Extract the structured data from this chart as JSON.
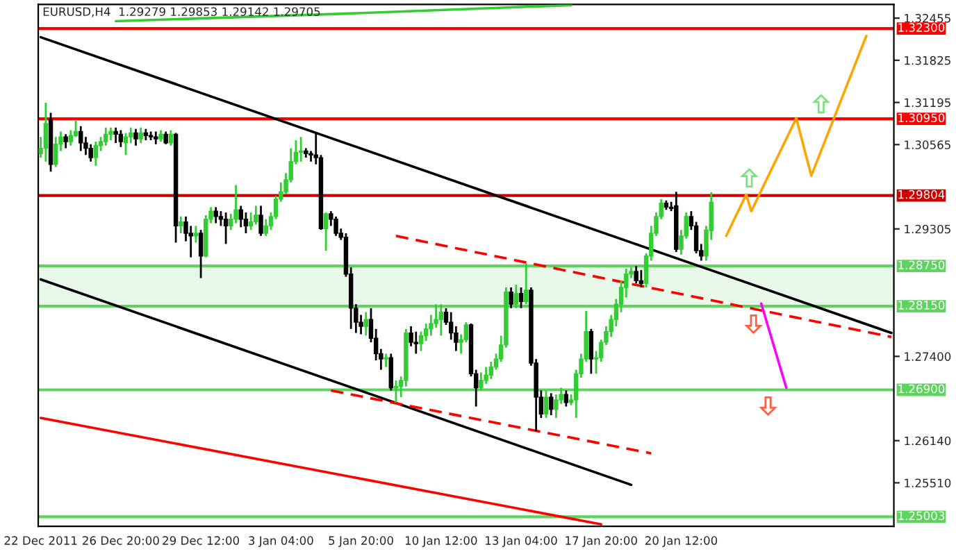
{
  "chart_data": {
    "type": "candlestick",
    "title": "EURUSD,H4  1.29279 1.29853 1.29142 1.29705",
    "categories": [
      "22 Dec 2011",
      null,
      null,
      null,
      null,
      null,
      null,
      null,
      null,
      null,
      null,
      null,
      null,
      null,
      null,
      null,
      "26 Dec 20:00",
      null,
      null,
      null,
      null,
      null,
      null,
      null,
      null,
      null,
      null,
      null,
      null,
      null,
      null,
      null,
      "29 Dec 12:00",
      null,
      null,
      null,
      null,
      null,
      null,
      null,
      null,
      null,
      null,
      null,
      null,
      null,
      null,
      null,
      "3 Jan 04:00",
      null,
      null,
      null,
      null,
      null,
      null,
      null,
      null,
      null,
      null,
      null,
      null,
      null,
      null,
      null,
      "5 Jan 20:00",
      null,
      null,
      null,
      null,
      null,
      null,
      null,
      null,
      null,
      null,
      null,
      null,
      null,
      null,
      null,
      "10 Jan 12:00",
      null,
      null,
      null,
      null,
      null,
      null,
      null,
      null,
      null,
      null,
      null,
      null,
      null,
      null,
      null,
      "13 Jan 04:00",
      null,
      null,
      null,
      null,
      null,
      null,
      null,
      null,
      null,
      null,
      null,
      null,
      null,
      null,
      null,
      "17 Jan 20:00",
      null,
      null,
      null,
      null,
      null,
      null,
      null,
      null,
      null,
      null,
      null,
      null,
      null,
      null,
      null,
      "20 Jan 12:00",
      null,
      null,
      null,
      null,
      null,
      null,
      null,
      null,
      null,
      null,
      null,
      null,
      null,
      null,
      null,
      null,
      null,
      null,
      null,
      null,
      null,
      null,
      null,
      null,
      null,
      null,
      null,
      null,
      null,
      null,
      null,
      null,
      null,
      null,
      null,
      null,
      null,
      null,
      null,
      null,
      null,
      null
    ],
    "ohlc": [
      [
        1.3043,
        1.3068,
        1.3037,
        1.3051
      ],
      [
        1.3051,
        1.3119,
        1.3031,
        1.3088
      ],
      [
        1.3094,
        1.3104,
        1.3016,
        1.3027
      ],
      [
        1.3027,
        1.3068,
        1.3023,
        1.3057
      ],
      [
        1.3057,
        1.3076,
        1.3047,
        1.3068
      ],
      [
        1.3068,
        1.3072,
        1.3051,
        1.3061
      ],
      [
        1.3061,
        1.3078,
        1.3055,
        1.307
      ],
      [
        1.307,
        1.3092,
        1.3068,
        1.3076
      ],
      [
        1.3076,
        1.3084,
        1.3047,
        1.3059
      ],
      [
        1.3059,
        1.3068,
        1.3041,
        1.3051
      ],
      [
        1.3051,
        1.3057,
        1.3031,
        1.3037
      ],
      [
        1.3037,
        1.3061,
        1.3025,
        1.3055
      ],
      [
        1.3055,
        1.3068,
        1.3047,
        1.3061
      ],
      [
        1.3061,
        1.3082,
        1.3055,
        1.3072
      ],
      [
        1.3072,
        1.3082,
        1.3063,
        1.3076
      ],
      [
        1.3076,
        1.3082,
        1.3059,
        1.3072
      ],
      [
        1.3072,
        1.3078,
        1.3053,
        1.3061
      ],
      [
        1.3059,
        1.3074,
        1.3041,
        1.3068
      ],
      [
        1.3068,
        1.3082,
        1.3059,
        1.3074
      ],
      [
        1.3074,
        1.308,
        1.3055,
        1.3065
      ],
      [
        1.3065,
        1.3082,
        1.3059,
        1.3074
      ],
      [
        1.3074,
        1.308,
        1.3063,
        1.307
      ],
      [
        1.307,
        1.3076,
        1.3063,
        1.3068
      ],
      [
        1.3068,
        1.3076,
        1.3057,
        1.3065
      ],
      [
        1.3065,
        1.3078,
        1.3061,
        1.3072
      ],
      [
        1.3072,
        1.3076,
        1.3057,
        1.3059
      ],
      [
        1.3059,
        1.3078,
        1.3055,
        1.3072
      ],
      [
        1.3072,
        1.3074,
        1.291,
        1.2935
      ],
      [
        1.2935,
        1.2949,
        1.2924,
        1.2941
      ],
      [
        1.2941,
        1.2949,
        1.2912,
        1.2924
      ],
      [
        1.2924,
        1.2935,
        1.2888,
        1.292
      ],
      [
        1.292,
        1.2935,
        1.291,
        1.2924
      ],
      [
        1.2924,
        1.2929,
        1.2857,
        1.289
      ],
      [
        1.289,
        1.2951,
        1.2888,
        1.2945
      ],
      [
        1.2945,
        1.2963,
        1.2939,
        1.2957
      ],
      [
        1.2957,
        1.2963,
        1.2939,
        1.2949
      ],
      [
        1.2949,
        1.2957,
        1.2935,
        1.2945
      ],
      [
        1.2945,
        1.2955,
        1.2908,
        1.2935
      ],
      [
        1.2935,
        1.2953,
        1.2929,
        1.2945
      ],
      [
        1.2945,
        1.2996,
        1.2939,
        1.2959
      ],
      [
        1.2959,
        1.2965,
        1.2933,
        1.2945
      ],
      [
        1.2945,
        1.2955,
        1.2924,
        1.2935
      ],
      [
        1.2935,
        1.2955,
        1.2929,
        1.2941
      ],
      [
        1.2941,
        1.2965,
        1.2937,
        1.2951
      ],
      [
        1.2951,
        1.2965,
        1.292,
        1.2924
      ],
      [
        1.2924,
        1.2945,
        1.292,
        1.2935
      ],
      [
        1.2935,
        1.2955,
        1.2929,
        1.2949
      ],
      [
        1.2949,
        1.298,
        1.2945,
        1.2975
      ],
      [
        1.2975,
        1.3,
        1.2971,
        1.2986
      ],
      [
        1.2986,
        1.3014,
        1.2982,
        1.3004
      ],
      [
        1.3004,
        1.3051,
        1.3,
        1.3031
      ],
      [
        1.3031,
        1.3063,
        1.3027,
        1.3045
      ],
      [
        1.3045,
        1.3068,
        1.3031,
        1.3047
      ],
      [
        1.3047,
        1.3051,
        1.3037,
        1.3043
      ],
      [
        1.3043,
        1.3047,
        1.3031,
        1.3041
      ],
      [
        1.3041,
        1.3074,
        1.3027,
        1.3037
      ],
      [
        1.3037,
        1.3041,
        1.2929,
        1.2931
      ],
      [
        1.2931,
        1.2955,
        1.2898,
        1.2953
      ],
      [
        1.2953,
        1.2957,
        1.2935,
        1.2945
      ],
      [
        1.2945,
        1.2949,
        1.292,
        1.2924
      ],
      [
        1.2924,
        1.2931,
        1.2914,
        1.2918
      ],
      [
        1.2918,
        1.2924,
        1.2859,
        1.2863
      ],
      [
        1.2863,
        1.2873,
        1.2781,
        1.2812
      ],
      [
        1.2812,
        1.2818,
        1.2775,
        1.2791
      ],
      [
        1.2791,
        1.2802,
        1.2773,
        1.2785
      ],
      [
        1.2785,
        1.2806,
        1.2771,
        1.2795
      ],
      [
        1.2795,
        1.2812,
        1.2761,
        1.2767
      ],
      [
        1.2767,
        1.2781,
        1.2734,
        1.2744
      ],
      [
        1.2744,
        1.2751,
        1.272,
        1.2736
      ],
      [
        1.2736,
        1.2744,
        1.2724,
        1.2738
      ],
      [
        1.2738,
        1.2744,
        1.2689,
        1.2693
      ],
      [
        1.2693,
        1.2704,
        1.2671,
        1.2695
      ],
      [
        1.2695,
        1.271,
        1.2679,
        1.2704
      ],
      [
        1.2704,
        1.2781,
        1.2695,
        1.2775
      ],
      [
        1.2775,
        1.2785,
        1.2755,
        1.2761
      ],
      [
        1.2761,
        1.2777,
        1.2744,
        1.2759
      ],
      [
        1.2759,
        1.2777,
        1.2748,
        1.2771
      ],
      [
        1.2771,
        1.2789,
        1.2763,
        1.2781
      ],
      [
        1.2781,
        1.2802,
        1.2771,
        1.2789
      ],
      [
        1.2789,
        1.2818,
        1.2783,
        1.2795
      ],
      [
        1.2795,
        1.2818,
        1.2771,
        1.2806
      ],
      [
        1.2806,
        1.2812,
        1.2787,
        1.2791
      ],
      [
        1.2791,
        1.2806,
        1.2765,
        1.2775
      ],
      [
        1.2775,
        1.2785,
        1.2748,
        1.2761
      ],
      [
        1.2761,
        1.2773,
        1.2744,
        1.2765
      ],
      [
        1.2765,
        1.2791,
        1.2761,
        1.2787
      ],
      [
        1.2787,
        1.2789,
        1.271,
        1.2714
      ],
      [
        1.2714,
        1.272,
        1.2665,
        1.2693
      ],
      [
        1.2693,
        1.2716,
        1.2689,
        1.2704
      ],
      [
        1.2704,
        1.2724,
        1.2699,
        1.2712
      ],
      [
        1.2712,
        1.2732,
        1.2706,
        1.2724
      ],
      [
        1.2724,
        1.2744,
        1.272,
        1.2736
      ],
      [
        1.2736,
        1.2771,
        1.2732,
        1.2757
      ],
      [
        1.2757,
        1.2843,
        1.2753,
        1.2836
      ],
      [
        1.2836,
        1.2843,
        1.2812,
        1.2818
      ],
      [
        1.2818,
        1.2847,
        1.2812,
        1.2834
      ],
      [
        1.2834,
        1.2843,
        1.2812,
        1.2822
      ],
      [
        1.2822,
        1.2879,
        1.2818,
        1.2839
      ],
      [
        1.2839,
        1.2843,
        1.2726,
        1.273
      ],
      [
        1.273,
        1.2736,
        1.2628,
        1.2679
      ],
      [
        1.2679,
        1.2689,
        1.2648,
        1.2654
      ],
      [
        1.2654,
        1.2689,
        1.2648,
        1.2679
      ],
      [
        1.2679,
        1.2685,
        1.2652,
        1.2661
      ],
      [
        1.2661,
        1.2683,
        1.2648,
        1.2675
      ],
      [
        1.2675,
        1.2693,
        1.2669,
        1.2683
      ],
      [
        1.2683,
        1.2689,
        1.2665,
        1.2671
      ],
      [
        1.2671,
        1.2683,
        1.2667,
        1.2675
      ],
      [
        1.2675,
        1.272,
        1.2648,
        1.2714
      ],
      [
        1.2714,
        1.2744,
        1.2708,
        1.2736
      ],
      [
        1.2736,
        1.2808,
        1.2732,
        1.2777
      ],
      [
        1.2777,
        1.2781,
        1.2714,
        1.2736
      ],
      [
        1.2736,
        1.2748,
        1.2714,
        1.2738
      ],
      [
        1.2738,
        1.2765,
        1.2732,
        1.2761
      ],
      [
        1.2761,
        1.2785,
        1.2757,
        1.2777
      ],
      [
        1.2777,
        1.2802,
        1.2769,
        1.2795
      ],
      [
        1.2795,
        1.2826,
        1.2785,
        1.2818
      ],
      [
        1.2818,
        1.2853,
        1.2806,
        1.2843
      ],
      [
        1.2843,
        1.2871,
        1.2828,
        1.2863
      ],
      [
        1.2863,
        1.2873,
        1.2857,
        1.2867
      ],
      [
        1.2867,
        1.2875,
        1.2849,
        1.2853
      ],
      [
        1.2853,
        1.2869,
        1.2843,
        1.2849
      ],
      [
        1.2849,
        1.2894,
        1.2843,
        1.289
      ],
      [
        1.289,
        1.2935,
        1.2883,
        1.2924
      ],
      [
        1.2924,
        1.2955,
        1.292,
        1.2949
      ],
      [
        1.2949,
        1.2975,
        1.2945,
        1.2969
      ],
      [
        1.2969,
        1.2973,
        1.2959,
        1.2963
      ],
      [
        1.2963,
        1.2971,
        1.2957,
        1.2961
      ],
      [
        1.2965,
        1.2986,
        1.2896,
        1.29
      ],
      [
        1.29,
        1.2929,
        1.2892,
        1.292
      ],
      [
        1.292,
        1.2955,
        1.2916,
        1.2949
      ],
      [
        1.2949,
        1.2957,
        1.2929,
        1.2935
      ],
      [
        1.2935,
        1.2941,
        1.2894,
        1.2898
      ],
      [
        1.2898,
        1.2908,
        1.2883,
        1.289
      ],
      [
        1.289,
        1.2935,
        1.2883,
        1.2929
      ],
      [
        1.29279,
        1.29853,
        1.29142,
        1.29705
      ],
      null,
      null,
      null,
      null,
      null,
      null,
      null,
      null,
      null,
      null,
      null,
      null,
      null,
      null,
      null,
      null,
      null,
      null,
      null,
      null,
      null,
      null,
      null,
      null,
      null,
      null,
      null,
      null,
      null,
      null,
      null,
      null,
      null,
      null,
      null,
      null
    ],
    "series": [
      {
        "type": "line",
        "color": "#000000",
        "values": [
          1.3217,
          null,
          null,
          null,
          null,
          null,
          null,
          null,
          null,
          null,
          null,
          null,
          null,
          null,
          null,
          null,
          null,
          null,
          null,
          null,
          null,
          null,
          null,
          null,
          null,
          null,
          null,
          null,
          null,
          null,
          null,
          null,
          null,
          null,
          null,
          null,
          null,
          null,
          null,
          null,
          null,
          null,
          null,
          null,
          null,
          null,
          null,
          null,
          null,
          null,
          null,
          null,
          null,
          null,
          null,
          null,
          null,
          null,
          null,
          null,
          null,
          null,
          null,
          null,
          null,
          null,
          null,
          null,
          null,
          null,
          null,
          null,
          null,
          null,
          null,
          null,
          null,
          null,
          null,
          null,
          null,
          null,
          null,
          null,
          null,
          null,
          null,
          null,
          null,
          null,
          null,
          null,
          null,
          null,
          null,
          null,
          null,
          null,
          null,
          null,
          null,
          null,
          null,
          null,
          null,
          null,
          null,
          null,
          null,
          null,
          null,
          null,
          null,
          null,
          null,
          null,
          null,
          null,
          null,
          null,
          null,
          null,
          null,
          null,
          null,
          null,
          null,
          null,
          null,
          null,
          null,
          null,
          null,
          null,
          null,
          null,
          null,
          null,
          null,
          null,
          null,
          null,
          null,
          null,
          null,
          null,
          null,
          null,
          null,
          null,
          null,
          null,
          null,
          null,
          null,
          null,
          null,
          null,
          null,
          null,
          null,
          null,
          null,
          null,
          null,
          null,
          null,
          null,
          null,
          null,
          1.2775
        ]
      },
      {
        "type": "line",
        "color": "#000000",
        "values": [
          1.2855,
          null,
          null,
          null,
          null,
          null,
          null,
          null,
          null,
          null,
          null,
          null,
          null,
          null,
          null,
          null,
          null,
          null,
          null,
          null,
          null,
          null,
          null,
          null,
          null,
          null,
          null,
          null,
          null,
          null,
          null,
          null,
          null,
          null,
          null,
          null,
          null,
          null,
          null,
          null,
          null,
          null,
          null,
          null,
          null,
          null,
          null,
          null,
          null,
          null,
          null,
          null,
          null,
          null,
          null,
          null,
          null,
          null,
          null,
          null,
          null,
          null,
          null,
          null,
          null,
          null,
          null,
          null,
          null,
          null,
          null,
          null,
          null,
          null,
          null,
          null,
          null,
          null,
          null,
          null,
          null,
          null,
          null,
          null,
          null,
          null,
          null,
          null,
          null,
          null,
          null,
          null,
          null,
          null,
          null,
          null,
          null,
          null,
          null,
          null,
          null,
          null,
          null,
          null,
          null,
          null,
          null,
          null,
          null,
          null,
          null,
          null,
          null,
          null,
          null,
          null,
          null,
          null,
          1.2548,
          null,
          null,
          null,
          null,
          null,
          null,
          null,
          null,
          null,
          null,
          null,
          null,
          null,
          null,
          null,
          null,
          null,
          null,
          null,
          null,
          null,
          null,
          null,
          null,
          null,
          null,
          null,
          null,
          null,
          null,
          null,
          null,
          null,
          null,
          null,
          null,
          null,
          null,
          null,
          null,
          null,
          null,
          null,
          null,
          null,
          null,
          null,
          null,
          null,
          null,
          null,
          null
        ]
      },
      {
        "type": "line",
        "color": "#ff0000",
        "values": [
          1.2648,
          null,
          null,
          null,
          null,
          null,
          null,
          null,
          null,
          null,
          null,
          null,
          null,
          null,
          null,
          null,
          null,
          null,
          null,
          null,
          null,
          null,
          null,
          null,
          null,
          null,
          null,
          null,
          null,
          null,
          null,
          null,
          null,
          null,
          null,
          null,
          null,
          null,
          null,
          null,
          null,
          null,
          null,
          null,
          null,
          null,
          null,
          null,
          null,
          null,
          null,
          null,
          null,
          null,
          null,
          null,
          null,
          null,
          null,
          null,
          null,
          null,
          null,
          null,
          null,
          null,
          null,
          null,
          null,
          null,
          null,
          null,
          null,
          null,
          null,
          null,
          null,
          null,
          null,
          null,
          null,
          null,
          null,
          null,
          null,
          null,
          null,
          null,
          null,
          null,
          null,
          null,
          null,
          null,
          null,
          null,
          null,
          null,
          null,
          null,
          null,
          null,
          null,
          null,
          null,
          null,
          null,
          null,
          null,
          null,
          null,
          null,
          1.2489,
          null,
          null,
          null,
          null,
          null,
          null,
          null,
          null,
          null,
          null,
          null,
          null,
          null,
          null,
          null,
          null,
          null,
          null,
          null,
          null,
          null,
          null,
          null,
          null,
          null,
          null,
          null,
          null,
          null,
          null,
          null,
          null,
          null,
          null,
          null,
          null,
          null,
          null,
          null,
          null,
          null,
          null,
          null,
          null,
          null,
          null,
          null,
          null,
          null,
          null,
          null,
          null,
          null,
          null,
          null,
          null,
          null,
          null
        ]
      },
      {
        "type": "line",
        "color": "#32cd32",
        "values": [
          null,
          null,
          null,
          null,
          null,
          null,
          null,
          null,
          null,
          null,
          null,
          null,
          null,
          null,
          null,
          1.3241,
          null,
          null,
          null,
          null,
          null,
          null,
          null,
          null,
          null,
          null,
          null,
          null,
          null,
          null,
          null,
          null,
          null,
          null,
          null,
          null,
          null,
          null,
          null,
          null,
          null,
          null,
          null,
          null,
          null,
          null,
          null,
          null,
          null,
          null,
          null,
          null,
          null,
          null,
          null,
          null,
          null,
          null,
          null,
          null,
          1.3252,
          null,
          null,
          null,
          null,
          null,
          null,
          null,
          null,
          null,
          null,
          null,
          null,
          null,
          null,
          null,
          null,
          null,
          null,
          null,
          null,
          null,
          null,
          null,
          null,
          null,
          null,
          null,
          null,
          null,
          null,
          null,
          null,
          null,
          null,
          null,
          null,
          null,
          null,
          null,
          null,
          null,
          null,
          null,
          null,
          null,
          1.3265,
          null,
          null,
          null,
          null,
          null,
          null,
          null,
          null,
          null,
          null,
          null,
          null,
          null,
          null,
          null,
          null,
          null,
          null,
          null,
          null,
          null,
          null,
          null,
          null,
          null,
          null,
          null,
          null,
          null,
          null,
          null,
          null,
          null,
          null,
          null,
          null,
          null,
          null,
          null,
          null,
          null,
          null,
          null,
          null,
          null,
          null,
          null,
          null,
          null,
          null,
          null,
          null,
          null,
          null,
          null,
          null,
          null,
          null,
          null,
          null,
          null,
          null,
          null,
          null
        ]
      },
      {
        "type": "line",
        "color": "#ff0000",
        "line_style": "dashed",
        "values": [
          null,
          null,
          null,
          null,
          null,
          null,
          null,
          null,
          null,
          null,
          null,
          null,
          null,
          null,
          null,
          null,
          null,
          null,
          null,
          null,
          null,
          null,
          null,
          null,
          null,
          null,
          null,
          null,
          null,
          null,
          null,
          null,
          null,
          null,
          null,
          null,
          null,
          null,
          null,
          null,
          null,
          null,
          null,
          null,
          null,
          null,
          null,
          null,
          null,
          null,
          null,
          null,
          null,
          null,
          null,
          null,
          null,
          null,
          null,
          null,
          null,
          null,
          null,
          null,
          null,
          null,
          null,
          null,
          null,
          null,
          null,
          1.292,
          null,
          null,
          null,
          null,
          null,
          null,
          null,
          null,
          null,
          null,
          null,
          null,
          null,
          null,
          null,
          null,
          null,
          null,
          null,
          null,
          null,
          null,
          null,
          null,
          null,
          null,
          null,
          null,
          null,
          null,
          null,
          null,
          null,
          null,
          null,
          null,
          null,
          null,
          null,
          null,
          null,
          null,
          null,
          null,
          null,
          null,
          null,
          null,
          null,
          null,
          null,
          null,
          null,
          null,
          null,
          null,
          null,
          null,
          null,
          null,
          null,
          null,
          null,
          null,
          null,
          null,
          null,
          null,
          null,
          null,
          null,
          null,
          null,
          null,
          null,
          null,
          null,
          null,
          null,
          null,
          null,
          null,
          null,
          null,
          null,
          null,
          null,
          null,
          null,
          null,
          null,
          null,
          null,
          null,
          null,
          null,
          null,
          null,
          1.2769
        ]
      },
      {
        "type": "line",
        "color": "#ff0000",
        "line_style": "dashed",
        "values": [
          null,
          null,
          null,
          null,
          null,
          null,
          null,
          null,
          null,
          null,
          null,
          null,
          null,
          null,
          null,
          null,
          null,
          null,
          null,
          null,
          null,
          null,
          null,
          null,
          null,
          null,
          null,
          null,
          null,
          null,
          null,
          null,
          null,
          null,
          null,
          null,
          null,
          null,
          null,
          null,
          null,
          null,
          null,
          null,
          null,
          null,
          null,
          null,
          null,
          null,
          null,
          null,
          null,
          null,
          null,
          null,
          null,
          null,
          1.2689,
          null,
          null,
          null,
          null,
          null,
          null,
          null,
          null,
          null,
          null,
          null,
          null,
          null,
          null,
          null,
          null,
          null,
          null,
          null,
          null,
          null,
          null,
          null,
          null,
          null,
          null,
          null,
          null,
          null,
          null,
          null,
          null,
          null,
          null,
          null,
          null,
          null,
          null,
          null,
          null,
          null,
          null,
          null,
          null,
          null,
          null,
          null,
          null,
          null,
          null,
          null,
          null,
          null,
          null,
          null,
          null,
          null,
          null,
          null,
          null,
          null,
          null,
          null,
          1.2595,
          null,
          null,
          null,
          null,
          null,
          null,
          null,
          null,
          null,
          null,
          null,
          null,
          null,
          null,
          null,
          null,
          null,
          null,
          null,
          null,
          null,
          null,
          null,
          null,
          null,
          null,
          null,
          null,
          null,
          null,
          null,
          null,
          null,
          null,
          null,
          null,
          null,
          null,
          null,
          null,
          null,
          null,
          null,
          null,
          null,
          null,
          null,
          null
        ]
      },
      {
        "type": "line",
        "color": "#ffa500",
        "values": [
          null,
          null,
          null,
          null,
          null,
          null,
          null,
          null,
          null,
          null,
          null,
          null,
          null,
          null,
          null,
          null,
          null,
          null,
          null,
          null,
          null,
          null,
          null,
          null,
          null,
          null,
          null,
          null,
          null,
          null,
          null,
          null,
          null,
          null,
          null,
          null,
          null,
          null,
          null,
          null,
          null,
          null,
          null,
          null,
          null,
          null,
          null,
          null,
          null,
          null,
          null,
          null,
          null,
          null,
          null,
          null,
          null,
          null,
          null,
          null,
          null,
          null,
          null,
          null,
          null,
          null,
          null,
          null,
          null,
          null,
          null,
          null,
          null,
          null,
          null,
          null,
          null,
          null,
          null,
          null,
          null,
          null,
          null,
          null,
          null,
          null,
          null,
          null,
          null,
          null,
          null,
          null,
          null,
          null,
          null,
          null,
          null,
          null,
          null,
          null,
          null,
          null,
          null,
          null,
          null,
          null,
          null,
          null,
          null,
          null,
          null,
          null,
          null,
          null,
          null,
          null,
          null,
          null,
          null,
          null,
          null,
          null,
          null,
          null,
          null,
          null,
          null,
          null,
          null,
          null,
          null,
          null,
          null,
          null,
          null,
          null,
          null,
          1.292,
          null,
          null,
          null,
          1.2982,
          1.2957,
          null,
          null,
          null,
          null,
          null,
          null,
          null,
          null,
          1.3096,
          null,
          null,
          1.301,
          null,
          null,
          null,
          null,
          null,
          null,
          null,
          null,
          null,
          null,
          1.3219,
          null,
          null,
          null,
          null,
          null
        ]
      },
      {
        "type": "line",
        "color": "#ff00ff",
        "values": [
          null,
          null,
          null,
          null,
          null,
          null,
          null,
          null,
          null,
          null,
          null,
          null,
          null,
          null,
          null,
          null,
          null,
          null,
          null,
          null,
          null,
          null,
          null,
          null,
          null,
          null,
          null,
          null,
          null,
          null,
          null,
          null,
          null,
          null,
          null,
          null,
          null,
          null,
          null,
          null,
          null,
          null,
          null,
          null,
          null,
          null,
          null,
          null,
          null,
          null,
          null,
          null,
          null,
          null,
          null,
          null,
          null,
          null,
          null,
          null,
          null,
          null,
          null,
          null,
          null,
          null,
          null,
          null,
          null,
          null,
          null,
          null,
          null,
          null,
          null,
          null,
          null,
          null,
          null,
          null,
          null,
          null,
          null,
          null,
          null,
          null,
          null,
          null,
          null,
          null,
          null,
          null,
          null,
          null,
          null,
          null,
          null,
          null,
          null,
          null,
          null,
          null,
          null,
          null,
          null,
          null,
          null,
          null,
          null,
          null,
          null,
          null,
          null,
          null,
          null,
          null,
          null,
          null,
          null,
          null,
          null,
          null,
          null,
          null,
          null,
          null,
          null,
          null,
          null,
          null,
          null,
          null,
          null,
          null,
          null,
          null,
          null,
          null,
          null,
          null,
          null,
          null,
          null,
          null,
          1.2819,
          null,
          null,
          null,
          null,
          1.2693,
          null,
          null,
          null,
          null,
          null,
          null,
          null,
          null,
          null,
          null,
          null,
          null,
          null,
          null,
          null,
          null,
          null,
          null,
          null,
          null,
          null
        ]
      }
    ],
    "ref_lines": [
      {
        "axis": "y",
        "value": 1.323,
        "label": "1.32300",
        "color": "#ff0000"
      },
      {
        "axis": "y",
        "value": 1.3095,
        "label": "1.30950",
        "color": "#ff0000"
      },
      {
        "axis": "y",
        "value": 1.29804,
        "label": "1.29804",
        "color": "#cc0000"
      },
      {
        "axis": "y",
        "value": 1.2875,
        "label": "1.28750",
        "color": "#5fd35f"
      },
      {
        "axis": "y",
        "value": 1.2815,
        "label": "1.28150",
        "color": "#5fd35f"
      },
      {
        "axis": "y",
        "value": 1.269,
        "label": "1.26900",
        "color": "#5fd35f"
      },
      {
        "axis": "y",
        "value": 1.25003,
        "label": "1.25003",
        "color": "#5fd35f"
      }
    ],
    "bands": [
      {
        "axis": "y",
        "from": 1.2815,
        "to": 1.2875,
        "color": "#e9f9e9"
      }
    ],
    "ylim": [
      1.2486,
      1.3266
    ],
    "yticks": [
      {
        "value": 1.32455,
        "label": "1.32455"
      },
      {
        "value": 1.31825,
        "label": "1.31825"
      },
      {
        "value": 1.31195,
        "label": "1.31195"
      },
      {
        "value": 1.30565,
        "label": "1.30565"
      },
      {
        "value": 1.29305,
        "label": "1.29305"
      },
      {
        "value": 1.274,
        "label": "1.27400"
      },
      {
        "value": 1.2614,
        "label": "1.26140"
      },
      {
        "value": 1.2551,
        "label": "1.25510"
      }
    ],
    "grid": false,
    "legend": false
  }
}
